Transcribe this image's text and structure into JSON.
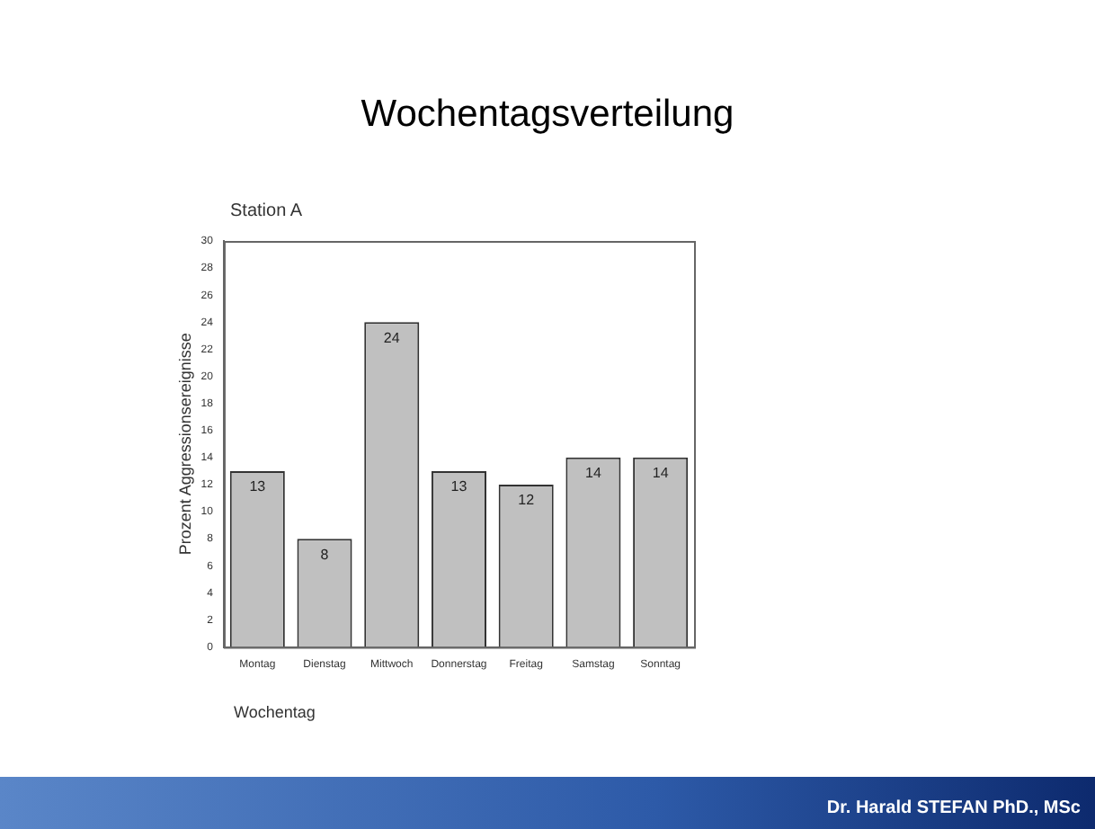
{
  "chart_data": {
    "type": "bar",
    "title": "Wochentagsverteilung",
    "subtitle": "Station A",
    "xlabel": "Wochentag",
    "ylabel": "Prozent Aggressionsereignisse",
    "categories": [
      "Montag",
      "Dienstag",
      "Mittwoch",
      "Donnerstag",
      "Freitag",
      "Samstag",
      "Sonntag"
    ],
    "values": [
      13,
      8,
      24,
      13,
      12,
      14,
      14
    ],
    "color": "#c0c0c0",
    "ylim": [
      0,
      30
    ],
    "yticks": [
      0,
      2,
      4,
      6,
      8,
      10,
      12,
      14,
      16,
      18,
      20,
      22,
      24,
      26,
      28,
      30
    ],
    "grid": false,
    "legend": false,
    "data_labels": true,
    "annotations": [
      "Dr. Harald STEFAN PhD., MSc"
    ]
  }
}
